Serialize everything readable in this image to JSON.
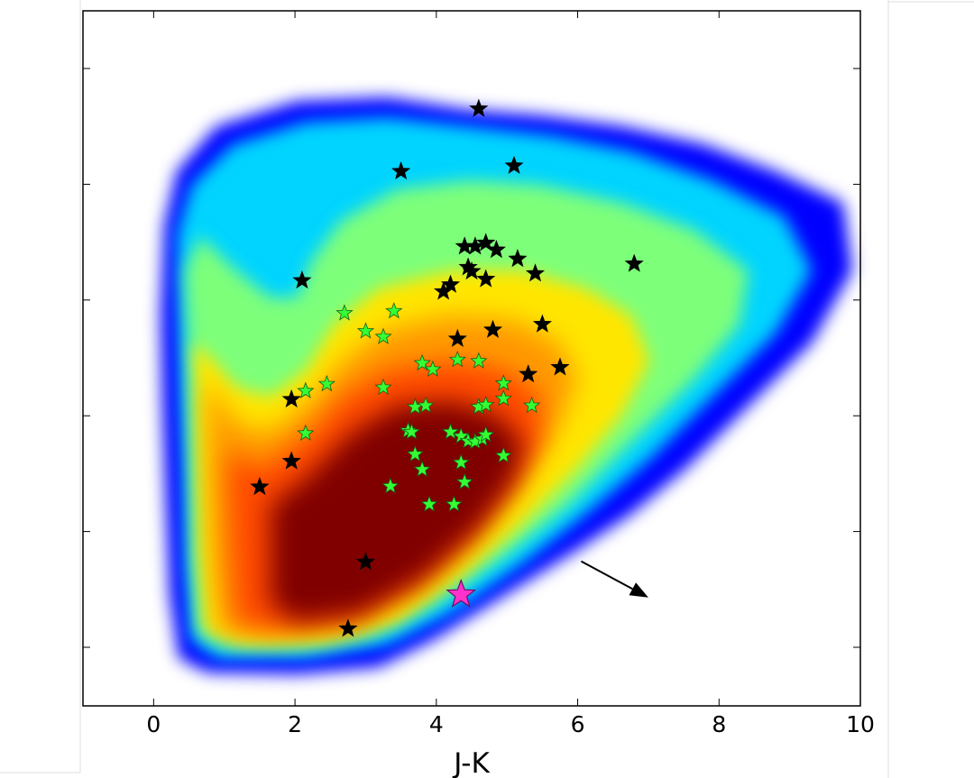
{
  "chart_data": {
    "type": "scatter",
    "title": "",
    "xlabel": "J-K",
    "ylabel": "",
    "xlim": [
      -1.0,
      10.0
    ],
    "ylim": [
      0,
      1
    ],
    "x_ticks": [
      0,
      2,
      4,
      6,
      8,
      10
    ],
    "x_tick_labels": [
      "0",
      "2",
      "4",
      "6",
      "8",
      "10"
    ],
    "y_tick_count": 6,
    "y_tick_labels_shown": false,
    "grid": false,
    "legend": "none",
    "background": {
      "kind": "2d density histogram",
      "colormap": "jet",
      "colormap_stops": [
        "#00007f",
        "#0000ff",
        "#00d4ff",
        "#7dff7a",
        "#ffe600",
        "#ff4800",
        "#800000"
      ]
    },
    "series": [
      {
        "marker": "star",
        "color": "#000000",
        "points": [
          [
            4.6,
            0.859
          ],
          [
            5.1,
            0.777
          ],
          [
            3.5,
            0.769
          ],
          [
            2.1,
            0.612
          ],
          [
            6.8,
            0.636
          ],
          [
            4.4,
            0.661
          ],
          [
            4.55,
            0.661
          ],
          [
            4.7,
            0.666
          ],
          [
            4.85,
            0.656
          ],
          [
            5.15,
            0.643
          ],
          [
            5.4,
            0.622
          ],
          [
            4.45,
            0.631
          ],
          [
            4.5,
            0.625
          ],
          [
            4.7,
            0.614
          ],
          [
            4.2,
            0.606
          ],
          [
            4.1,
            0.596
          ],
          [
            5.5,
            0.549
          ],
          [
            4.3,
            0.528
          ],
          [
            4.8,
            0.541
          ],
          [
            5.75,
            0.487
          ],
          [
            5.3,
            0.477
          ],
          [
            1.95,
            0.441
          ],
          [
            1.95,
            0.352
          ],
          [
            1.5,
            0.315
          ],
          [
            3.0,
            0.207
          ],
          [
            2.75,
            0.111
          ]
        ]
      },
      {
        "marker": "star",
        "color": "#33ff33",
        "points": [
          [
            2.7,
            0.565
          ],
          [
            3.4,
            0.568
          ],
          [
            3.0,
            0.539
          ],
          [
            3.25,
            0.531
          ],
          [
            2.15,
            0.453
          ],
          [
            2.45,
            0.463
          ],
          [
            3.25,
            0.458
          ],
          [
            3.8,
            0.493
          ],
          [
            3.95,
            0.484
          ],
          [
            4.3,
            0.498
          ],
          [
            4.6,
            0.496
          ],
          [
            4.95,
            0.464
          ],
          [
            4.95,
            0.442
          ],
          [
            5.35,
            0.432
          ],
          [
            3.7,
            0.43
          ],
          [
            3.85,
            0.432
          ],
          [
            4.6,
            0.43
          ],
          [
            4.7,
            0.433
          ],
          [
            2.15,
            0.392
          ],
          [
            3.6,
            0.396
          ],
          [
            3.65,
            0.394
          ],
          [
            4.2,
            0.394
          ],
          [
            4.35,
            0.388
          ],
          [
            4.45,
            0.381
          ],
          [
            4.55,
            0.38
          ],
          [
            4.65,
            0.384
          ],
          [
            4.7,
            0.39
          ],
          [
            3.7,
            0.362
          ],
          [
            4.95,
            0.36
          ],
          [
            4.35,
            0.35
          ],
          [
            3.8,
            0.34
          ],
          [
            4.4,
            0.322
          ],
          [
            3.35,
            0.316
          ],
          [
            3.9,
            0.29
          ],
          [
            4.25,
            0.29
          ]
        ]
      },
      {
        "marker": "star",
        "color": "#ff33cc",
        "points": [
          [
            4.35,
            0.16
          ]
        ]
      }
    ],
    "annotations": [
      {
        "kind": "arrow",
        "from": [
          6.05,
          0.208
        ],
        "to": [
          7.0,
          0.156
        ],
        "color": "#000000"
      }
    ]
  }
}
